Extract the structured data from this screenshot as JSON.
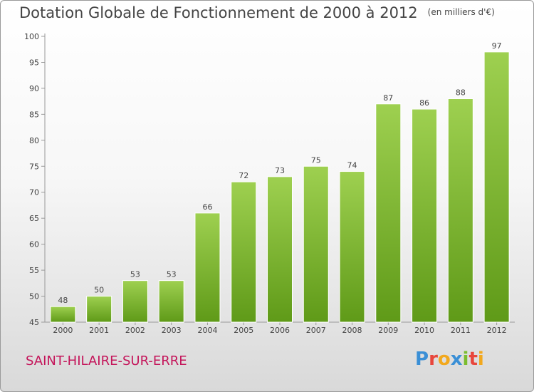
{
  "chart_data": {
    "type": "bar",
    "title": "Dotation Globale de Fonctionnement de 2000 à 2012",
    "subtitle": "(en milliers d'€)",
    "categories": [
      "2000",
      "2001",
      "2002",
      "2003",
      "2004",
      "2005",
      "2006",
      "2007",
      "2008",
      "2009",
      "2010",
      "2011",
      "2012"
    ],
    "values": [
      48,
      50,
      53,
      53,
      66,
      72,
      73,
      75,
      74,
      87,
      86,
      88,
      97
    ],
    "ylim": [
      45,
      100
    ],
    "yticks": [
      45,
      50,
      55,
      60,
      65,
      70,
      75,
      80,
      85,
      90,
      95,
      100
    ],
    "xlabel": "",
    "ylabel": "",
    "grid": false,
    "bar_color_top": "#9ed050",
    "bar_color_bottom": "#5f9a18"
  },
  "footer": {
    "commune": "SAINT-HILAIRE-SUR-ERRE",
    "logo_text": "Proxiti",
    "logo_letters": [
      {
        "ch": "P",
        "color": "#3a8fd6"
      },
      {
        "ch": "r",
        "color": "#e8463c"
      },
      {
        "ch": "o",
        "color": "#f2a81d"
      },
      {
        "ch": "x",
        "color": "#3a8fd6"
      },
      {
        "ch": "i",
        "color": "#7cbd2f"
      },
      {
        "ch": "t",
        "color": "#e8463c"
      },
      {
        "ch": "i",
        "color": "#f2a81d"
      }
    ]
  }
}
